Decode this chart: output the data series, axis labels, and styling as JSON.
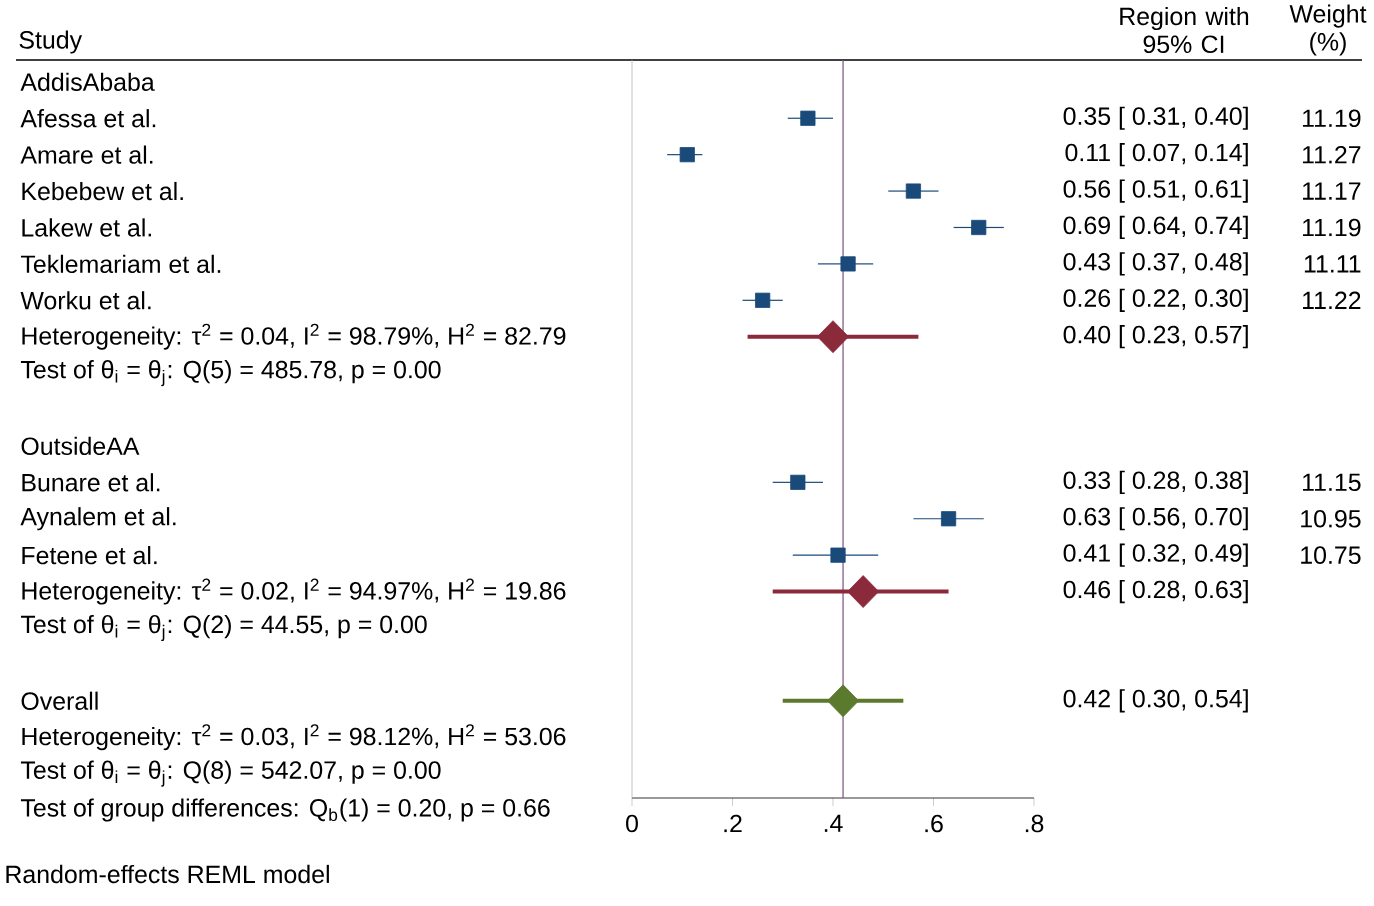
{
  "chart_data": {
    "type": "scatter",
    "orientation": "horizontal",
    "ylabel": "Study",
    "categories": [
      "AddisAbaba",
      "Afessa et al.",
      "Amare et al.",
      "Kebebew et al.",
      "Lakew et al.",
      "Teklemariam et al.",
      "Worku et al.",
      "Heterogeneity: τ$^{2}$ = 0.04, I$^{2}$ = 98.79%, H$^{2}$ = 82.79",
      "Test of θ$_{i}$ = θ$_{j}$: Q(5) = 485.78, p = 0.00",
      null,
      "OutsideAA",
      "Bunare et al.",
      "Aynalem et al.",
      "Fetene et al.",
      "Heterogeneity: τ$^{2}$ = 0.02, I$^{2}$ = 94.97%, H$^{2}$ = 19.86",
      "Test of θ$_{i}$ = θ$_{j}$: Q(2) = 44.55, p = 0.00",
      null,
      "Overall",
      "Heterogeneity: τ$^{2}$ = 0.03, I$^{2}$ = 98.12%, H$^{2}$ = 53.06",
      "Test of θ$_{i}$ = θ$_{j}$: Q(8) = 542.07, p = 0.00",
      "Test of group differences: Q$_{b}$(1) = 0.20, p = 0.66"
    ],
    "series": [
      {
        "color": "#1a4a7a",
        "marker": "square",
        "values": [
          null,
          0.35,
          0.11,
          0.56,
          0.69,
          0.43,
          0.26,
          null,
          null,
          null,
          null,
          0.33,
          0.63,
          0.41,
          null,
          null,
          null,
          null,
          null,
          null,
          null
        ],
        "errors": [
          null,
          [
            0.31,
            0.4
          ],
          [
            0.07,
            0.14
          ],
          [
            0.51,
            0.61
          ],
          [
            0.64,
            0.74
          ],
          [
            0.37,
            0.48
          ],
          [
            0.22,
            0.3
          ],
          null,
          null,
          null,
          null,
          [
            0.28,
            0.38
          ],
          [
            0.56,
            0.7
          ],
          [
            0.32,
            0.49
          ],
          null,
          null,
          null,
          null,
          null,
          null,
          null
        ],
        "value_labels": [
          null,
          "0.35 [ 0.31,  0.40]",
          "0.11 [ 0.07,  0.14]",
          "0.56 [ 0.51,  0.61]",
          "0.69 [ 0.64,  0.74]",
          "0.43 [ 0.37,  0.48]",
          "0.26 [ 0.22,  0.30]",
          null,
          null,
          null,
          null,
          "0.33 [ 0.28,  0.38]",
          "0.63 [ 0.56,  0.70]",
          "0.41 [ 0.32,  0.49]",
          null,
          null,
          null,
          null,
          null,
          null,
          null
        ]
      },
      {
        "color": "#8b2a3a",
        "marker": "diamond",
        "values": [
          null,
          null,
          null,
          null,
          null,
          null,
          null,
          0.4,
          null,
          null,
          null,
          null,
          null,
          null,
          0.46,
          null,
          null,
          null,
          null,
          null,
          null
        ],
        "errors": [
          null,
          null,
          null,
          null,
          null,
          null,
          null,
          [
            0.23,
            0.57
          ],
          null,
          null,
          null,
          null,
          null,
          null,
          [
            0.28,
            0.63
          ],
          null,
          null,
          null,
          null,
          null,
          null
        ]
      },
      {
        "color": "#5b7a2e",
        "marker": "diamond",
        "values": [
          null,
          null,
          null,
          null,
          null,
          null,
          null,
          null,
          null,
          null,
          null,
          null,
          null,
          null,
          null,
          null,
          null,
          0.42,
          null,
          null,
          null
        ],
        "errors": [
          null,
          null,
          null,
          null,
          null,
          null,
          null,
          null,
          null,
          null,
          null,
          null,
          null,
          null,
          null,
          null,
          null,
          [
            0.3,
            0.54
          ],
          null,
          null,
          null
        ]
      }
    ],
    "xlim": [
      0,
      0.8
    ],
    "xticks": [
      {
        "value": 0,
        "label": "0"
      },
      {
        "value": 0.2,
        "label": ".2"
      },
      {
        "value": 0.4,
        "label": ".4"
      },
      {
        "value": 0.6,
        "label": ".6"
      },
      {
        "value": 0.8,
        "label": ".8"
      }
    ],
    "ref_lines": [
      {
        "axis": "x",
        "value": 0.42,
        "color": "#7b4f7f"
      }
    ],
    "annotations": [
      "Region with 95% CI",
      "Weight (%)",
      "Random-effects REML model",
      "11.19",
      "11.27",
      "11.17",
      "11.19",
      "11.11",
      "11.22",
      "11.15",
      "10.95",
      "10.75",
      "0.40 [ 0.23,  0.57]",
      "0.46 [ 0.28,  0.63]",
      "0.42 [ 0.30,  0.54]"
    ]
  }
}
